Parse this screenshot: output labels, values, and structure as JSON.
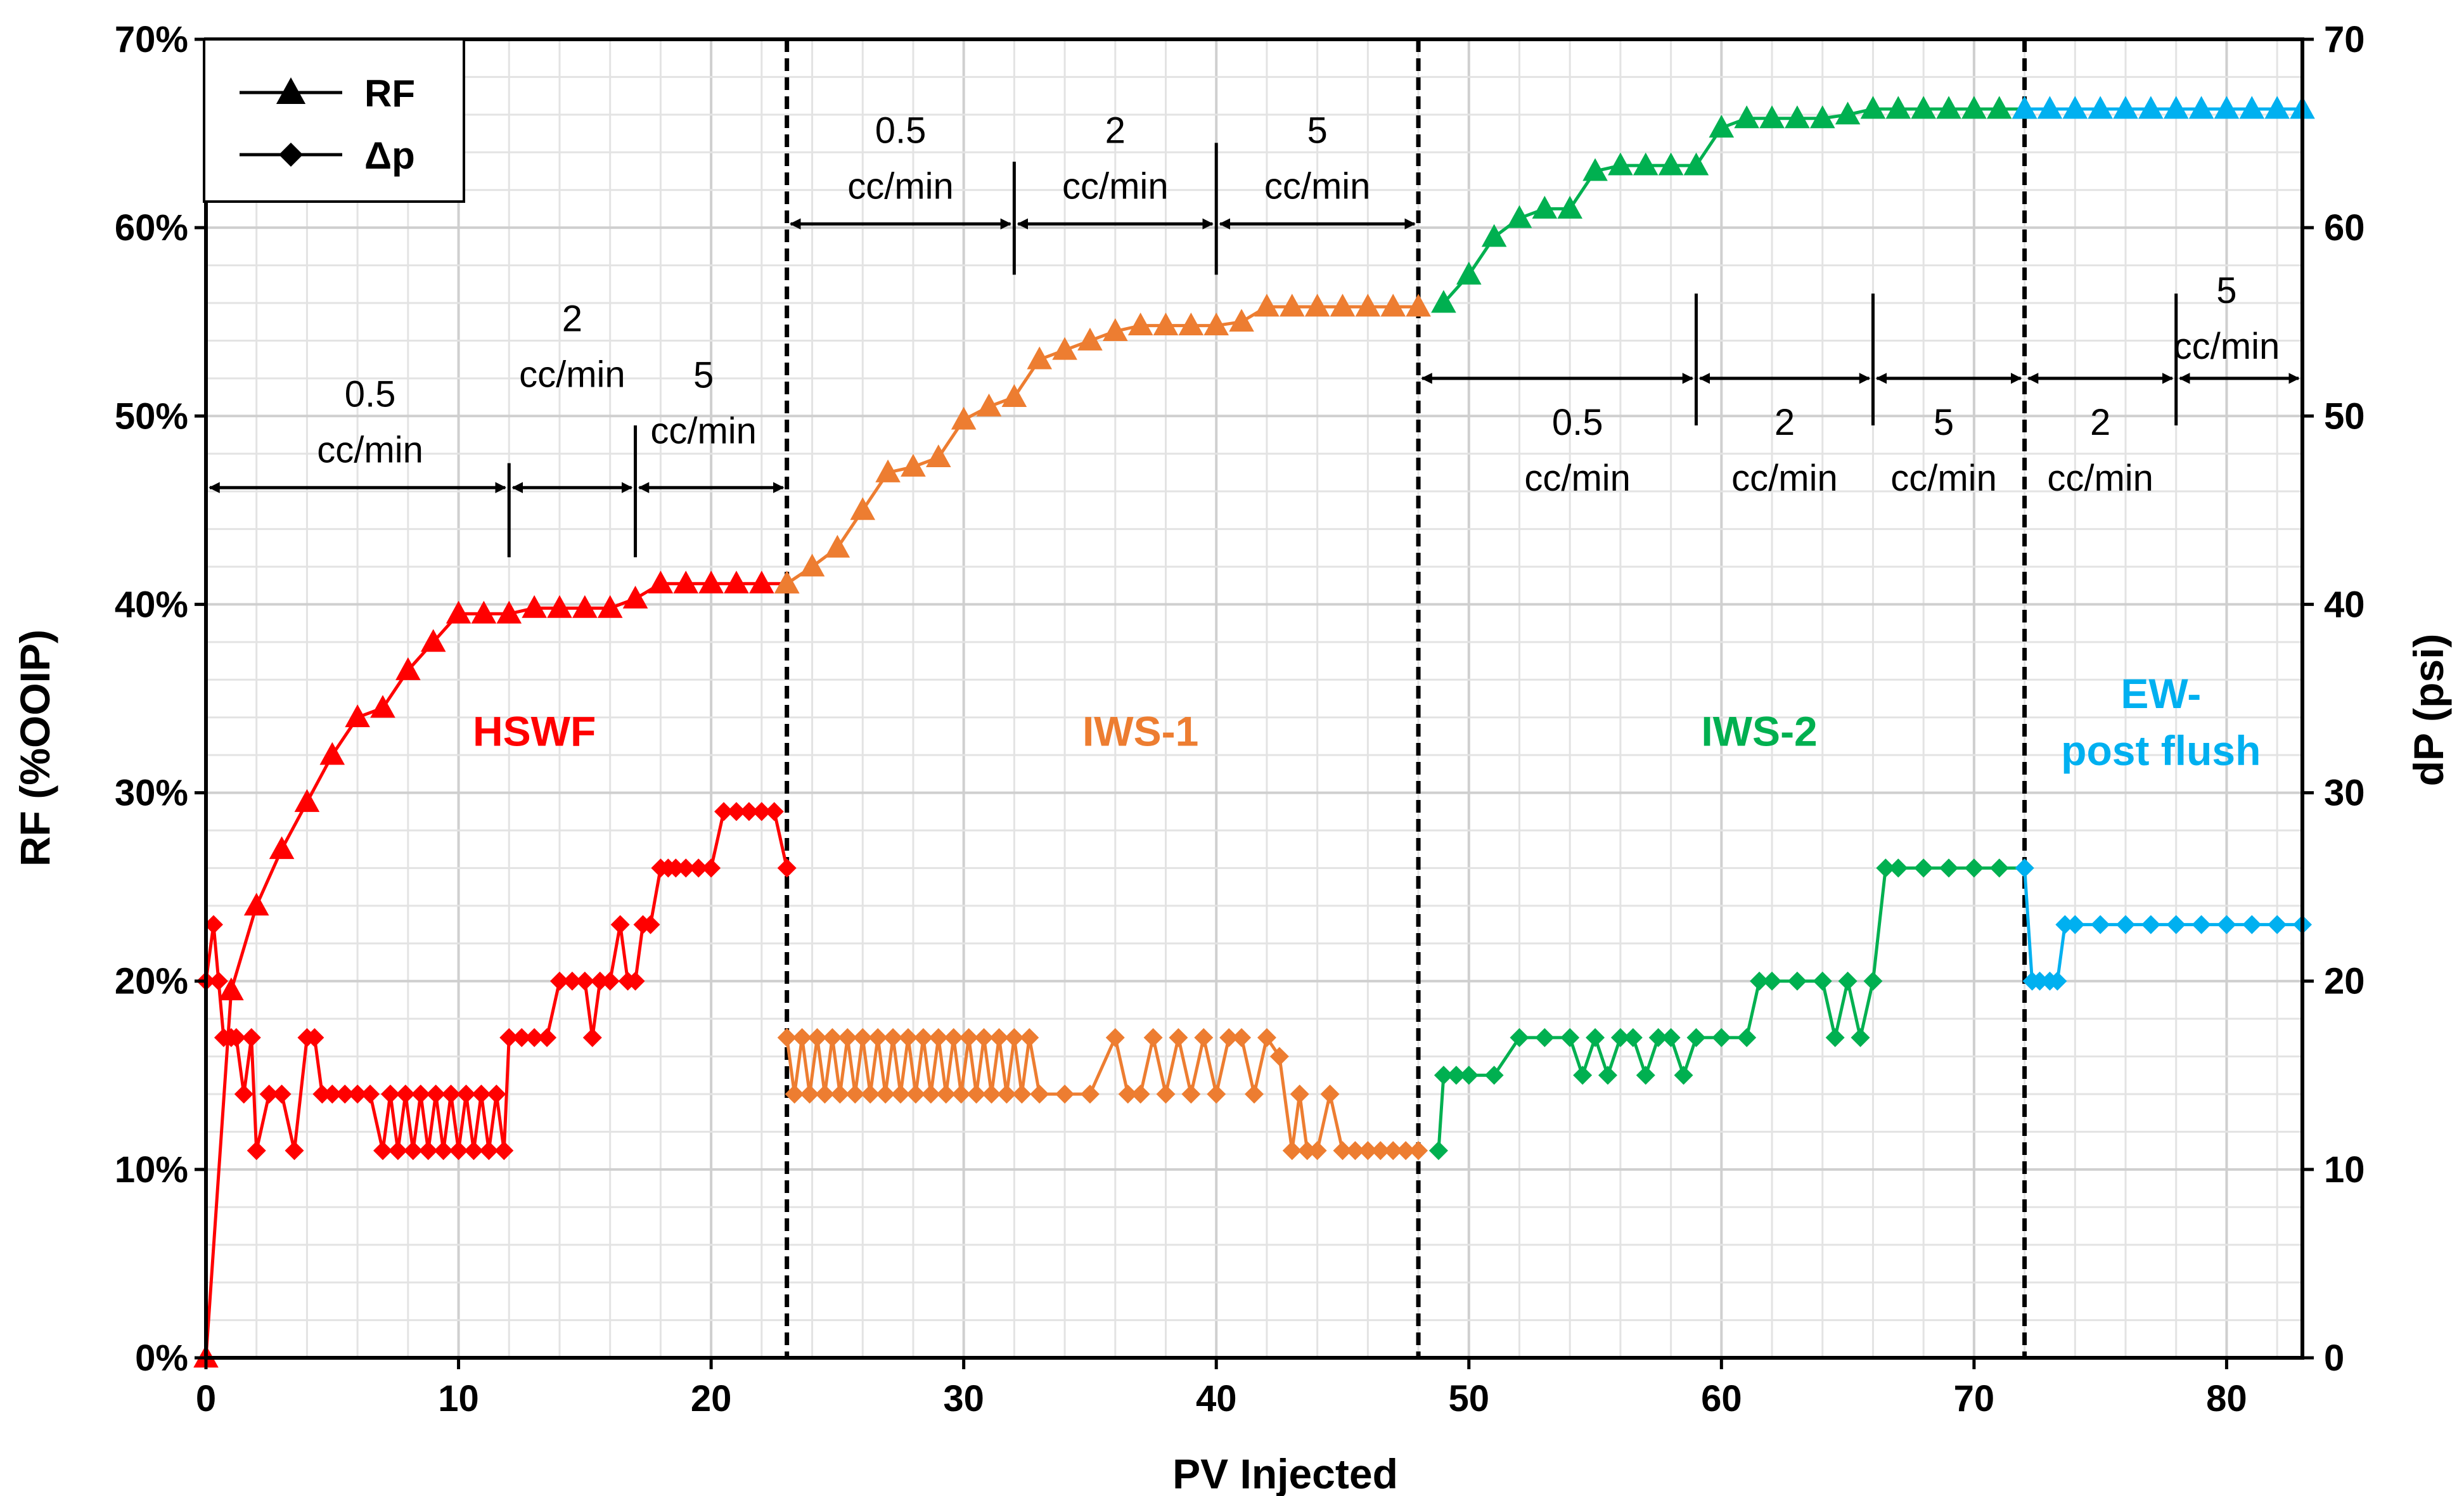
{
  "chart_data": {
    "type": "line",
    "title": "",
    "xlabel": "PV Injected",
    "ylabel_left": "RF (%OOIP)",
    "ylabel_right": "dP (psi)",
    "xlim": [
      0,
      83
    ],
    "ylim_left": [
      0,
      70
    ],
    "ylim_right": [
      0,
      70
    ],
    "x_ticks": [
      0,
      10,
      20,
      30,
      40,
      50,
      60,
      70,
      80
    ],
    "y_ticks_left": [
      "0%",
      "10%",
      "20%",
      "30%",
      "40%",
      "50%",
      "60%",
      "70%"
    ],
    "y_ticks_right": [
      0,
      10,
      20,
      30,
      40,
      50,
      60,
      70
    ],
    "grid": true,
    "legend": {
      "position": "top-left",
      "entries": [
        {
          "label": "RF",
          "marker": "triangle"
        },
        {
          "label": "Δp",
          "marker": "diamond"
        }
      ]
    },
    "phase_boundaries": [
      23,
      48,
      72
    ],
    "phases": [
      {
        "name": "HSWF",
        "color": "#ff0000",
        "x_range": [
          0,
          23
        ]
      },
      {
        "name": "IWS-1",
        "color": "#ed7d31",
        "x_range": [
          23,
          48
        ]
      },
      {
        "name": "IWS-2",
        "color": "#00b050",
        "x_range": [
          48,
          72
        ]
      },
      {
        "name": "EW-post flush",
        "color": "#00b0f0",
        "x_range": [
          72,
          83
        ]
      }
    ],
    "phase_labels": [
      {
        "lines": [
          "HSWF"
        ],
        "x": 13,
        "y": 32.5,
        "color": "#ff0000"
      },
      {
        "lines": [
          "IWS-1"
        ],
        "x": 37,
        "y": 32.5,
        "color": "#ed7d31"
      },
      {
        "lines": [
          "IWS-2"
        ],
        "x": 61.5,
        "y": 32.5,
        "color": "#00b050"
      },
      {
        "lines": [
          "EW-",
          "post flush"
        ],
        "x": 77.4,
        "y": 34.5,
        "color": "#00b0f0"
      }
    ],
    "rate_annotations": [
      {
        "x_start": 0,
        "x_end": 12,
        "arrow_y": 46.2,
        "lines": [
          "0.5",
          "cc/min"
        ],
        "text_x": 6.5,
        "text_y": 50.5
      },
      {
        "x_start": 12,
        "x_end": 17,
        "arrow_y": 46.2,
        "lines": [
          "2",
          "cc/min"
        ],
        "text_x": 14.5,
        "text_y": 54.5
      },
      {
        "x_start": 17,
        "x_end": 23,
        "arrow_y": 46.2,
        "lines": [
          "5",
          "cc/min"
        ],
        "text_x": 19.7,
        "text_y": 51.5
      },
      {
        "x_start": 23,
        "x_end": 32,
        "arrow_y": 60.2,
        "lines": [
          "0.5",
          "cc/min"
        ],
        "text_x": 27.5,
        "text_y": 64.5
      },
      {
        "x_start": 32,
        "x_end": 40,
        "arrow_y": 60.2,
        "lines": [
          "2",
          "cc/min"
        ],
        "text_x": 36,
        "text_y": 64.5
      },
      {
        "x_start": 40,
        "x_end": 48,
        "arrow_y": 60.2,
        "lines": [
          "5",
          "cc/min"
        ],
        "text_x": 44,
        "text_y": 64.5
      },
      {
        "x_start": 48,
        "x_end": 59,
        "arrow_y": 52,
        "lines": [
          "0.5",
          "cc/min"
        ],
        "text_x": 54.3,
        "text_y": 49
      },
      {
        "x_start": 59,
        "x_end": 66,
        "arrow_y": 52,
        "lines": [
          "2",
          "cc/min"
        ],
        "text_x": 62.5,
        "text_y": 49
      },
      {
        "x_start": 66,
        "x_end": 72,
        "arrow_y": 52,
        "lines": [
          "5",
          "cc/min"
        ],
        "text_x": 68.8,
        "text_y": 49
      },
      {
        "x_start": 72,
        "x_end": 78,
        "arrow_y": 52,
        "lines": [
          "2",
          "cc/min"
        ],
        "text_x": 75,
        "text_y": 49
      },
      {
        "x_start": 78,
        "x_end": 83,
        "arrow_y": 52,
        "lines": [
          "5",
          "cc/min"
        ],
        "text_x": 80,
        "text_y": 56
      }
    ],
    "series": [
      {
        "name": "RF",
        "marker": "triangle",
        "segments": [
          {
            "phase": "HSWF",
            "color": "#ff0000",
            "x": [
              0,
              1,
              2,
              3,
              4,
              5,
              6,
              7,
              8,
              9,
              10,
              11,
              12,
              13,
              14,
              15,
              16,
              17,
              18,
              19,
              20,
              21,
              22,
              23
            ],
            "y": [
              0,
              19.5,
              24,
              27,
              29.5,
              32,
              34,
              34.5,
              36.5,
              38,
              39.5,
              39.5,
              39.5,
              39.8,
              39.8,
              39.8,
              39.8,
              40.3,
              41.1,
              41.1,
              41.1,
              41.1,
              41.1,
              41.1
            ]
          },
          {
            "phase": "IWS-1",
            "color": "#ed7d31",
            "x": [
              23,
              24,
              25,
              26,
              27,
              28,
              29,
              30,
              31,
              32,
              33,
              34,
              35,
              36,
              37,
              38,
              39,
              40,
              41,
              42,
              43,
              44,
              45,
              46,
              47,
              48
            ],
            "y": [
              41.1,
              42,
              43,
              45,
              47,
              47.3,
              47.8,
              49.8,
              50.5,
              51,
              53,
              53.5,
              54,
              54.5,
              54.8,
              54.8,
              54.8,
              54.8,
              55,
              55.8,
              55.8,
              55.8,
              55.8,
              55.8,
              55.8,
              55.8
            ]
          },
          {
            "phase": "IWS-2",
            "color": "#00b050",
            "x": [
              49,
              50,
              51,
              52,
              53,
              54,
              55,
              56,
              57,
              58,
              59,
              60,
              61,
              62,
              63,
              64,
              65,
              66,
              67,
              68,
              69,
              70,
              71,
              72
            ],
            "y": [
              56,
              57.5,
              59.5,
              60.5,
              61,
              61,
              63,
              63.3,
              63.3,
              63.3,
              63.3,
              65.3,
              65.8,
              65.8,
              65.8,
              65.8,
              66,
              66.3,
              66.3,
              66.3,
              66.3,
              66.3,
              66.3,
              66.3
            ]
          },
          {
            "phase": "EW-post flush",
            "color": "#00b0f0",
            "x": [
              72,
              73,
              74,
              75,
              76,
              77,
              78,
              79,
              80,
              81,
              82,
              83
            ],
            "y": [
              66.3,
              66.3,
              66.3,
              66.3,
              66.3,
              66.3,
              66.3,
              66.3,
              66.3,
              66.3,
              66.3,
              66.3
            ]
          }
        ]
      },
      {
        "name": "Δp",
        "marker": "diamond",
        "axis": "right",
        "segments": [
          {
            "phase": "HSWF",
            "color": "#ff0000",
            "x": [
              0,
              0.3,
              0.5,
              0.7,
              1,
              1.2,
              1.5,
              1.8,
              2,
              2.5,
              3,
              3.5,
              4,
              4.3,
              4.6,
              5,
              5.5,
              6,
              6.5,
              7,
              7.3,
              7.6,
              7.9,
              8.2,
              8.5,
              8.8,
              9.1,
              9.4,
              9.7,
              10,
              10.3,
              10.6,
              10.9,
              11.2,
              11.5,
              11.8,
              12,
              12.5,
              13,
              13.5,
              14,
              14.5,
              15,
              15.3,
              15.6,
              16,
              16.4,
              16.7,
              17,
              17.3,
              17.6,
              18,
              18.3,
              18.6,
              19,
              19.5,
              20,
              20.5,
              21,
              21.5,
              22,
              22.5,
              23
            ],
            "y": [
              20,
              23,
              20,
              17,
              17,
              17,
              14,
              17,
              11,
              14,
              14,
              11,
              17,
              17,
              14,
              14,
              14,
              14,
              14,
              11,
              14,
              11,
              14,
              11,
              14,
              11,
              14,
              11,
              14,
              11,
              14,
              11,
              14,
              11,
              14,
              11,
              17,
              17,
              17,
              17,
              20,
              20,
              20,
              17,
              20,
              20,
              23,
              20,
              20,
              23,
              23,
              26,
              26,
              26,
              26,
              26,
              26,
              29,
              29,
              29,
              29,
              29,
              26
            ]
          },
          {
            "phase": "IWS-1",
            "color": "#ed7d31",
            "x": [
              23,
              23.3,
              23.6,
              23.9,
              24.2,
              24.5,
              24.8,
              25.1,
              25.4,
              25.7,
              26,
              26.3,
              26.6,
              26.9,
              27.2,
              27.5,
              27.8,
              28.1,
              28.4,
              28.7,
              29,
              29.3,
              29.6,
              29.9,
              30.2,
              30.5,
              30.8,
              31.1,
              31.4,
              31.7,
              32,
              32.3,
              32.6,
              33,
              34,
              35,
              36,
              36.5,
              37,
              37.5,
              38,
              38.5,
              39,
              39.5,
              40,
              40.5,
              41,
              41.5,
              42,
              42.5,
              43,
              43.3,
              43.6,
              44,
              44.5,
              45,
              45.5,
              46,
              46.5,
              47,
              47.5,
              48
            ],
            "y": [
              17,
              14,
              17,
              14,
              17,
              14,
              17,
              14,
              17,
              14,
              17,
              14,
              17,
              14,
              17,
              14,
              17,
              14,
              17,
              14,
              17,
              14,
              17,
              14,
              17,
              14,
              17,
              14,
              17,
              14,
              17,
              14,
              17,
              14,
              14,
              14,
              17,
              14,
              14,
              17,
              14,
              17,
              14,
              17,
              14,
              17,
              17,
              14,
              17,
              16,
              11,
              14,
              11,
              11,
              14,
              11,
              11,
              11,
              11,
              11,
              11,
              11
            ]
          },
          {
            "phase": "IWS-2",
            "color": "#00b050",
            "x": [
              48.8,
              49,
              49.5,
              50,
              51,
              52,
              53,
              54,
              54.5,
              55,
              55.5,
              56,
              56.5,
              57,
              57.5,
              58,
              58.5,
              59,
              60,
              61,
              61.5,
              62,
              63,
              64,
              64.5,
              65,
              65.5,
              66,
              66.5,
              67,
              68,
              69,
              70,
              71,
              72
            ],
            "y": [
              11,
              15,
              15,
              15,
              15,
              17,
              17,
              17,
              15,
              17,
              15,
              17,
              17,
              15,
              17,
              17,
              15,
              17,
              17,
              17,
              20,
              20,
              20,
              20,
              17,
              20,
              17,
              20,
              26,
              26,
              26,
              26,
              26,
              26,
              26
            ]
          },
          {
            "phase": "EW-post flush",
            "color": "#00b0f0",
            "x": [
              72,
              72.3,
              72.6,
              73,
              73.3,
              73.6,
              74,
              75,
              76,
              77,
              78,
              79,
              80,
              81,
              82,
              83
            ],
            "y": [
              26,
              20,
              20,
              20,
              20,
              23,
              23,
              23,
              23,
              23,
              23,
              23,
              23,
              23,
              23,
              23
            ]
          }
        ]
      }
    ]
  }
}
